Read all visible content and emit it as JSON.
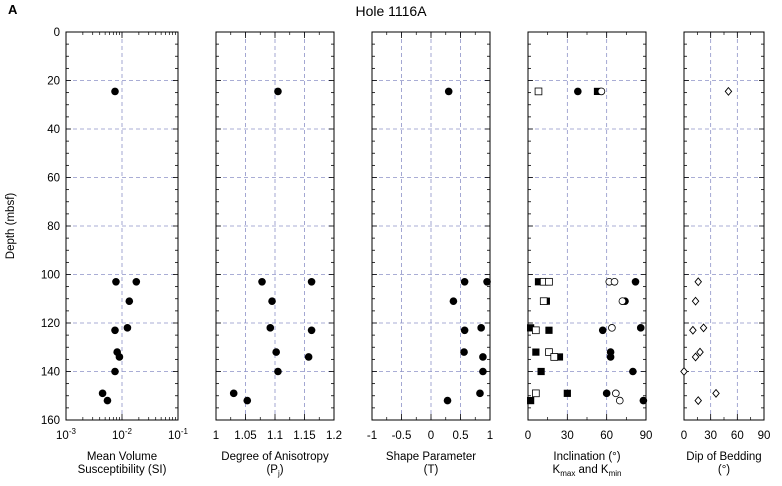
{
  "panel_letter": "A",
  "figure_title": "Hole 1116A",
  "y_axis": {
    "label": "Depth (mbsf)",
    "ticks": [
      "0",
      "20",
      "40",
      "60",
      "80",
      "100",
      "120",
      "140",
      "160"
    ],
    "range": [
      0,
      160
    ]
  },
  "colors": {
    "grid": "#8d92c8",
    "ink": "#000000"
  },
  "chart_data": [
    {
      "type": "scatter",
      "name": "susceptibility",
      "xlabel_lines": [
        "Mean Volume",
        "Susceptibility  (SI)"
      ],
      "x_scale": "log",
      "xlim": [
        0.001,
        0.1
      ],
      "x_ticks": [
        {
          "base": "10",
          "exp": "-3"
        },
        {
          "base": "10",
          "exp": "-2"
        },
        {
          "base": "10",
          "exp": "-1"
        }
      ],
      "grid_x": [
        0.01
      ],
      "series": [
        {
          "marker": "filled-circle",
          "points": [
            [
              0.0075,
              24.5
            ],
            [
              0.0078,
              103
            ],
            [
              0.018,
              103
            ],
            [
              0.0135,
              111
            ],
            [
              0.0075,
              123
            ],
            [
              0.0125,
              122
            ],
            [
              0.0082,
              132
            ],
            [
              0.009,
              134
            ],
            [
              0.0075,
              140
            ],
            [
              0.0045,
              149
            ],
            [
              0.0055,
              152
            ]
          ]
        }
      ]
    },
    {
      "type": "scatter",
      "name": "anisotropy",
      "xlabel_lines": [
        "Degree of Anisotropy",
        "(P"
      ],
      "xlabel_sub": "j",
      "xlabel_after": ")",
      "x_scale": "linear",
      "xlim": [
        1,
        1.2
      ],
      "x_ticks": [
        "1",
        "1.05",
        "1.1",
        "1.15",
        "1.2"
      ],
      "grid_x": [
        1.05,
        1.1,
        1.15
      ],
      "series": [
        {
          "marker": "filled-circle",
          "points": [
            [
              1.105,
              24.5
            ],
            [
              1.078,
              103
            ],
            [
              1.162,
              103
            ],
            [
              1.095,
              111
            ],
            [
              1.092,
              122
            ],
            [
              1.162,
              123
            ],
            [
              1.102,
              132
            ],
            [
              1.157,
              134
            ],
            [
              1.105,
              140
            ],
            [
              1.03,
              149
            ],
            [
              1.053,
              152
            ]
          ]
        }
      ]
    },
    {
      "type": "scatter",
      "name": "shape",
      "xlabel_lines": [
        "Shape  Parameter",
        "(T)"
      ],
      "x_scale": "linear",
      "xlim": [
        -1,
        1
      ],
      "x_ticks": [
        "-1",
        "-0.5",
        "0",
        "0.5",
        "1"
      ],
      "grid_x": [
        -0.5,
        0,
        0.5
      ],
      "series": [
        {
          "marker": "filled-circle",
          "points": [
            [
              0.3,
              24.5
            ],
            [
              0.57,
              103
            ],
            [
              0.95,
              103
            ],
            [
              0.38,
              111
            ],
            [
              0.57,
              123
            ],
            [
              0.85,
              122
            ],
            [
              0.56,
              132
            ],
            [
              0.88,
              134
            ],
            [
              0.88,
              140
            ],
            [
              0.83,
              149
            ],
            [
              0.28,
              152
            ]
          ]
        }
      ]
    },
    {
      "type": "scatter",
      "name": "inclination",
      "xlabel_lines": [
        "Inclination (°)",
        "K"
      ],
      "xlabel_k": [
        "max",
        "min"
      ],
      "x_scale": "linear",
      "xlim": [
        0,
        90
      ],
      "x_ticks": [
        "0",
        "30",
        "60",
        "90"
      ],
      "grid_x": [
        30,
        60
      ],
      "series": [
        {
          "name": "K max filled",
          "marker": "filled-square",
          "points": [
            [
              53,
              24.5
            ],
            [
              8,
              103
            ],
            [
              14,
              111
            ],
            [
              2,
              122
            ],
            [
              16,
              123
            ],
            [
              6,
              132
            ],
            [
              24,
              134
            ],
            [
              10,
              140
            ],
            [
              30,
              149
            ],
            [
              2,
              152
            ]
          ]
        },
        {
          "name": "K max open",
          "marker": "open-square",
          "points": [
            [
              8,
              24.5
            ],
            [
              12,
              103
            ],
            [
              16,
              103
            ],
            [
              12,
              111
            ],
            [
              6,
              123
            ],
            [
              16,
              132
            ],
            [
              20,
              134
            ],
            [
              6,
              149
            ]
          ]
        },
        {
          "name": "K min filled",
          "marker": "filled-circle",
          "points": [
            [
              38,
              24.5
            ],
            [
              82,
              103
            ],
            [
              74,
              111
            ],
            [
              57,
              123
            ],
            [
              86,
              122
            ],
            [
              63,
              132
            ],
            [
              63,
              134
            ],
            [
              80,
              140
            ],
            [
              60,
              149
            ],
            [
              88,
              152
            ]
          ]
        },
        {
          "name": "K min open",
          "marker": "open-circle",
          "points": [
            [
              56,
              24.5
            ],
            [
              62,
              103
            ],
            [
              66,
              103
            ],
            [
              72,
              111
            ],
            [
              64,
              122
            ],
            [
              67,
              149
            ],
            [
              70,
              152
            ]
          ]
        }
      ]
    },
    {
      "type": "scatter",
      "name": "bedding",
      "xlabel_lines": [
        "Dip of Bedding",
        "(°)"
      ],
      "x_scale": "linear",
      "xlim": [
        0,
        90
      ],
      "x_ticks": [
        "0",
        "30",
        "60",
        "90"
      ],
      "grid_x": [
        30,
        60
      ],
      "series": [
        {
          "marker": "open-diamond",
          "points": [
            [
              50,
              24.5
            ],
            [
              16,
              103
            ],
            [
              13,
              111
            ],
            [
              22,
              122
            ],
            [
              10,
              123
            ],
            [
              18,
              132
            ],
            [
              13,
              134
            ],
            [
              0,
              140
            ],
            [
              36,
              149
            ],
            [
              16,
              152
            ]
          ]
        }
      ]
    }
  ]
}
